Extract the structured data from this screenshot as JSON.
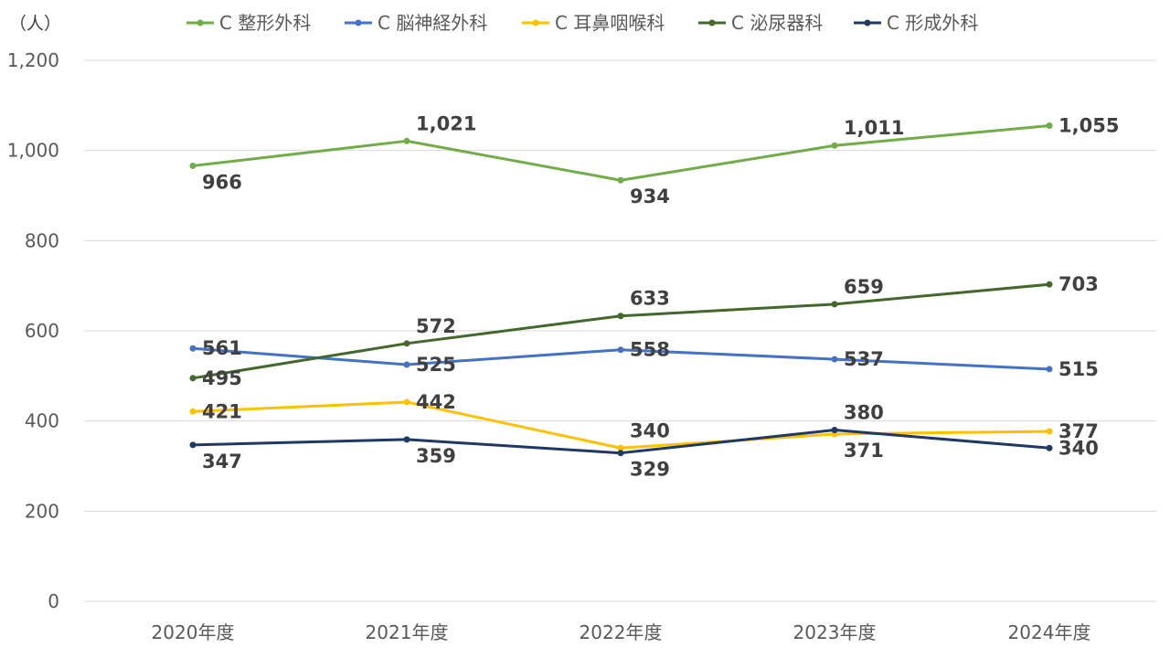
{
  "chart_data": {
    "type": "line",
    "unit_label": "（人）",
    "categories": [
      "2020年度",
      "2021年度",
      "2022年度",
      "2023年度",
      "2024年度"
    ],
    "ylim": [
      0,
      1200
    ],
    "yticks": [
      0,
      200,
      400,
      600,
      800,
      1000,
      1200
    ],
    "ytick_labels": [
      "0",
      "200",
      "400",
      "600",
      "800",
      "1,000",
      "1,200"
    ],
    "grid": true,
    "legend_position": "top",
    "series": [
      {
        "name": "C 整形外科",
        "color": "#70AD47",
        "values": [
          966,
          1021,
          934,
          1011,
          1055
        ],
        "labels": [
          "966",
          "1,021",
          "934",
          "1,011",
          "1,055"
        ],
        "label_pos": [
          "below",
          "above",
          "below",
          "above",
          "right"
        ]
      },
      {
        "name": "C 脳神経外科",
        "color": "#4472C4",
        "values": [
          561,
          525,
          558,
          537,
          515
        ],
        "labels": [
          "561",
          "525",
          "558",
          "537",
          "515"
        ],
        "label_pos": [
          "right",
          "right",
          "right",
          "right",
          "right"
        ]
      },
      {
        "name": "C 耳鼻咽喉科",
        "color": "#FFC000",
        "values": [
          421,
          442,
          340,
          371,
          377
        ],
        "labels": [
          "421",
          "442",
          "340",
          "371",
          "377"
        ],
        "label_pos": [
          "right",
          "right",
          "above",
          "below",
          "right"
        ]
      },
      {
        "name": "C 泌尿器科",
        "color": "#43682B",
        "values": [
          495,
          572,
          633,
          659,
          703
        ],
        "labels": [
          "495",
          "572",
          "633",
          "659",
          "703"
        ],
        "label_pos": [
          "right",
          "above",
          "above",
          "above",
          "right"
        ]
      },
      {
        "name": "C 形成外科",
        "color": "#203864",
        "values": [
          347,
          359,
          329,
          380,
          340
        ],
        "labels": [
          "347",
          "359",
          "329",
          "380",
          "340"
        ],
        "label_pos": [
          "below",
          "below",
          "below",
          "above",
          "right"
        ]
      }
    ]
  }
}
